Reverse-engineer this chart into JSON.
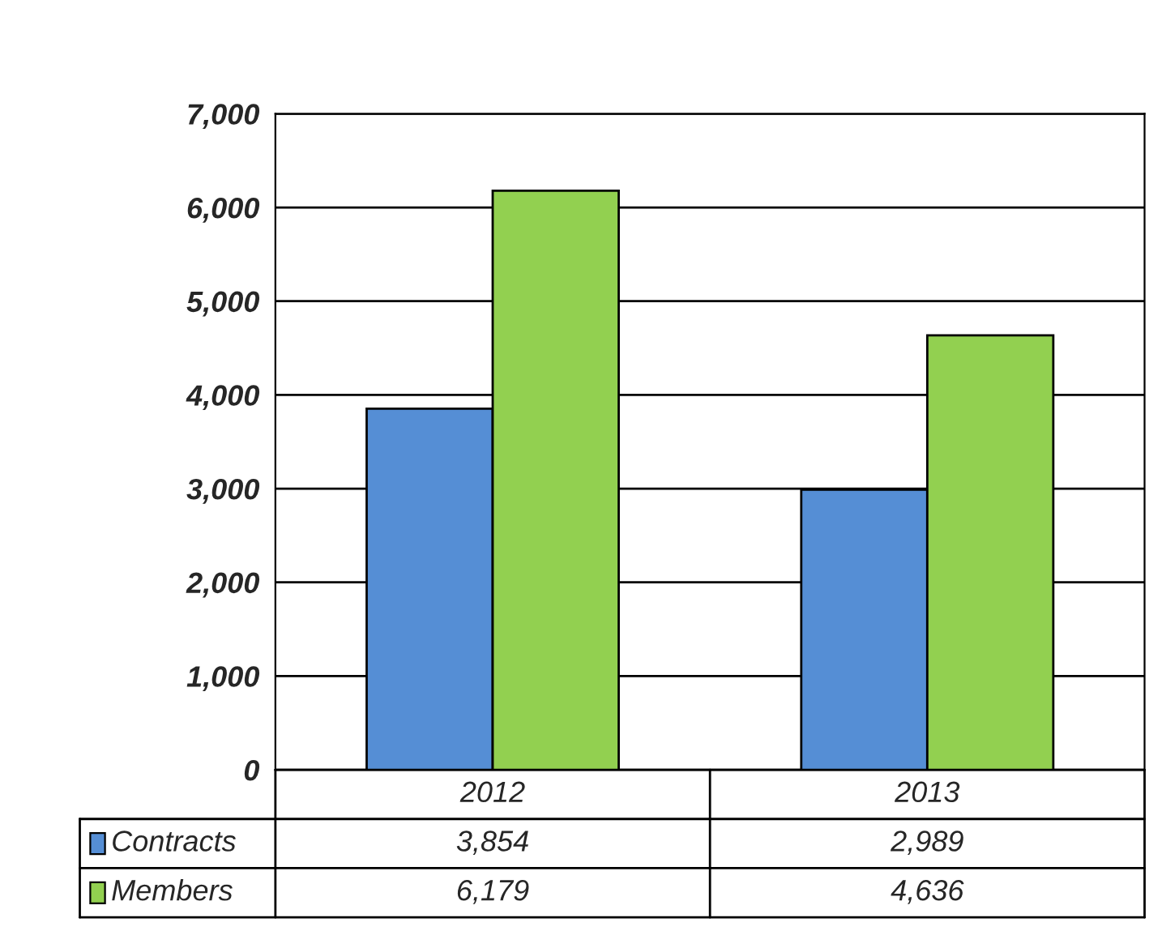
{
  "chart_data": {
    "type": "bar",
    "categories": [
      "2012",
      "2013"
    ],
    "series": [
      {
        "name": "Contracts",
        "color": "#558ed5",
        "values": [
          3854,
          2989
        ],
        "value_labels": [
          "3,854",
          "2,989"
        ]
      },
      {
        "name": "Members",
        "color": "#92d050",
        "values": [
          6179,
          4636
        ],
        "value_labels": [
          "6,179",
          "4,636"
        ]
      }
    ],
    "ylim": [
      0,
      7000
    ],
    "yticks": [
      0,
      {
        "value": 1000,
        "label": "1,000"
      },
      {
        "value": 2000,
        "label": "2,000"
      },
      {
        "value": 3000,
        "label": "3,000"
      },
      {
        "value": 4000,
        "label": "4,000"
      },
      {
        "value": 5000,
        "label": "5,000"
      },
      {
        "value": 6000,
        "label": "6,000"
      },
      {
        "value": 7000,
        "label": "7,000"
      }
    ],
    "grid": "y",
    "legend": "bottom left"
  }
}
